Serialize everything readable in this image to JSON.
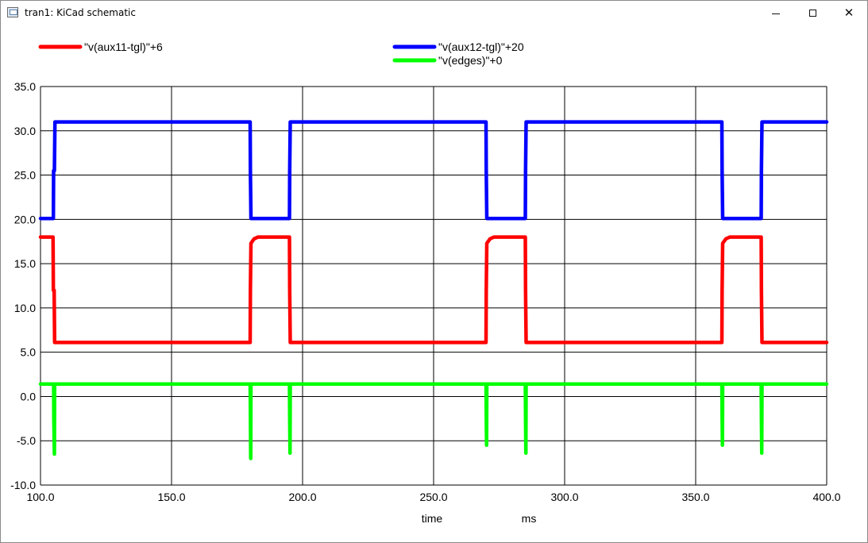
{
  "window": {
    "title": "tran1: KiCad schematic",
    "controls": {
      "minimize": "minimize",
      "maximize": "maximize",
      "close": "close"
    }
  },
  "chart_data": {
    "type": "line",
    "xlabel": "time",
    "xunit": "ms",
    "xlim": [
      100,
      400
    ],
    "ylim": [
      -10,
      35
    ],
    "grid": true,
    "legend_position": "top",
    "x_ticks": [
      "100.0",
      "150.0",
      "200.0",
      "250.0",
      "300.0",
      "350.0",
      "400.0"
    ],
    "y_ticks": [
      "35.0",
      "30.0",
      "25.0",
      "20.0",
      "15.0",
      "10.0",
      "5.0",
      "0.0",
      "-5.0",
      "-10.0"
    ],
    "series": [
      {
        "name": "\"v(aux11-tgl)\"+6",
        "color": "#ff0000",
        "points": [
          [
            100,
            18
          ],
          [
            104.8,
            18
          ],
          [
            104.9,
            12
          ],
          [
            105.2,
            12
          ],
          [
            105.4,
            6.1
          ],
          [
            180,
            6.1
          ],
          [
            180.1,
            12
          ],
          [
            180.3,
            17.3
          ],
          [
            181.5,
            17.8
          ],
          [
            183,
            18
          ],
          [
            195,
            18
          ],
          [
            195.1,
            12
          ],
          [
            195.3,
            6.1
          ],
          [
            270,
            6.1
          ],
          [
            270.1,
            12
          ],
          [
            270.3,
            17.3
          ],
          [
            271.5,
            17.8
          ],
          [
            273,
            18
          ],
          [
            285,
            18
          ],
          [
            285.1,
            12
          ],
          [
            285.3,
            6.1
          ],
          [
            360,
            6.1
          ],
          [
            360.1,
            12
          ],
          [
            360.3,
            17.3
          ],
          [
            361.5,
            17.8
          ],
          [
            363,
            18
          ],
          [
            375,
            18
          ],
          [
            375.1,
            12
          ],
          [
            375.3,
            6.1
          ],
          [
            400,
            6.1
          ]
        ]
      },
      {
        "name": "\"v(aux12-tgl)\"+20",
        "color": "#0000ff",
        "points": [
          [
            100,
            20.1
          ],
          [
            104.9,
            20.1
          ],
          [
            105.0,
            25.5
          ],
          [
            105.3,
            25.5
          ],
          [
            105.5,
            31
          ],
          [
            180,
            31
          ],
          [
            180.1,
            25.5
          ],
          [
            180.3,
            20.1
          ],
          [
            195,
            20.1
          ],
          [
            195.1,
            25.5
          ],
          [
            195.3,
            31
          ],
          [
            270,
            31
          ],
          [
            270.1,
            25.5
          ],
          [
            270.3,
            20.1
          ],
          [
            285,
            20.1
          ],
          [
            285.1,
            25.5
          ],
          [
            285.3,
            31
          ],
          [
            360,
            31
          ],
          [
            360.1,
            25.5
          ],
          [
            360.3,
            20.1
          ],
          [
            375,
            20.1
          ],
          [
            375.1,
            25.5
          ],
          [
            375.3,
            31
          ],
          [
            400,
            31
          ]
        ]
      },
      {
        "name": "\"v(edges)\"+0",
        "color": "#00ff00",
        "points": [
          [
            100,
            1.4
          ],
          [
            105.0,
            1.4
          ],
          [
            105.1,
            -2.5
          ],
          [
            105.3,
            -6.5
          ],
          [
            105.4,
            1.4
          ],
          [
            180,
            1.4
          ],
          [
            180.1,
            -1.5
          ],
          [
            180.2,
            -7
          ],
          [
            180.3,
            1.4
          ],
          [
            195,
            1.4
          ],
          [
            195.1,
            -2.5
          ],
          [
            195.2,
            -6.4
          ],
          [
            195.3,
            1.4
          ],
          [
            270,
            1.4
          ],
          [
            270.1,
            -2
          ],
          [
            270.2,
            -5.5
          ],
          [
            270.3,
            1.4
          ],
          [
            285,
            1.4
          ],
          [
            285.1,
            -2.5
          ],
          [
            285.2,
            -6.4
          ],
          [
            285.3,
            1.4
          ],
          [
            360,
            1.4
          ],
          [
            360.1,
            -2
          ],
          [
            360.2,
            -5.5
          ],
          [
            360.3,
            1.4
          ],
          [
            375,
            1.4
          ],
          [
            375.1,
            -2.5
          ],
          [
            375.2,
            -6.4
          ],
          [
            375.3,
            1.4
          ],
          [
            400,
            1.4
          ]
        ]
      }
    ]
  }
}
